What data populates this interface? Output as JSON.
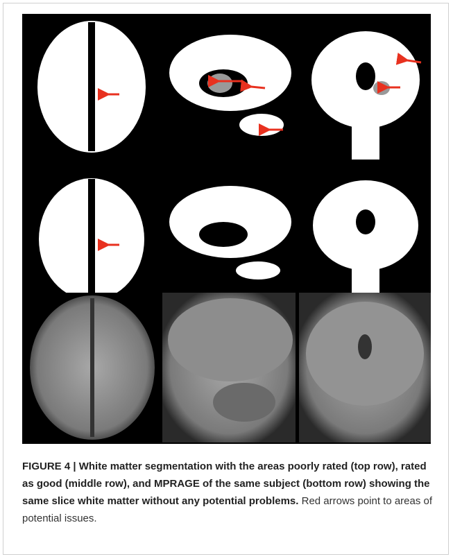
{
  "caption": {
    "bold": "FIGURE 4 | White matter segmentation with the areas poorly rated (top row), rated as good (middle row), and MPRAGE of the same subject (bottom row) showing the same slice white matter without any potential problems.",
    "text": "Red arrows point to areas of potential issues."
  }
}
